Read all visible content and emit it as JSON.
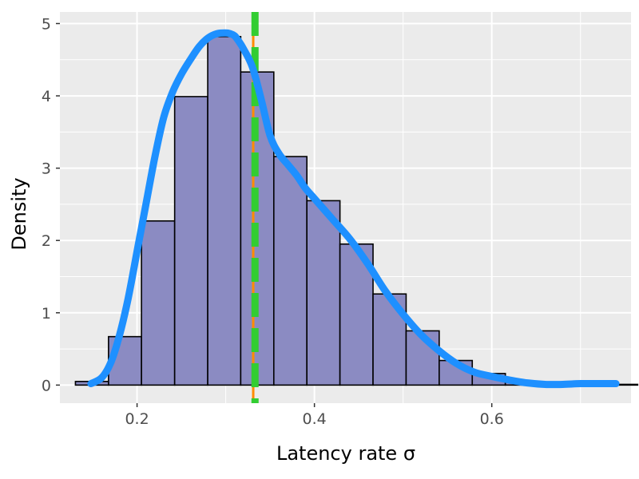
{
  "chart_data": {
    "type": "histogram",
    "xlabel": "Latency rate σ",
    "ylabel": "Density",
    "xlim": [
      0.113,
      0.757
    ],
    "ylim": [
      -0.25,
      5.16
    ],
    "x_ticks": [
      {
        "value": 0.2,
        "label": "0.2"
      },
      {
        "value": 0.4,
        "label": "0.4"
      },
      {
        "value": 0.6,
        "label": "0.6"
      }
    ],
    "y_ticks": [
      {
        "value": 0,
        "label": "0"
      },
      {
        "value": 1,
        "label": "1"
      },
      {
        "value": 2,
        "label": "2"
      },
      {
        "value": 3,
        "label": "3"
      },
      {
        "value": 4,
        "label": "4"
      },
      {
        "value": 5,
        "label": "5"
      }
    ],
    "grid": true,
    "bins": [
      {
        "x0": 0.1305,
        "x1": 0.1678,
        "density": 0.05
      },
      {
        "x0": 0.1678,
        "x1": 0.205,
        "density": 0.67
      },
      {
        "x0": 0.205,
        "x1": 0.2424,
        "density": 2.27
      },
      {
        "x0": 0.2424,
        "x1": 0.2797,
        "density": 3.99
      },
      {
        "x0": 0.2797,
        "x1": 0.3169,
        "density": 4.82
      },
      {
        "x0": 0.3169,
        "x1": 0.3542,
        "density": 4.33
      },
      {
        "x0": 0.3542,
        "x1": 0.3915,
        "density": 3.16
      },
      {
        "x0": 0.3915,
        "x1": 0.4288,
        "density": 2.55
      },
      {
        "x0": 0.4288,
        "x1": 0.4661,
        "density": 1.95
      },
      {
        "x0": 0.4661,
        "x1": 0.5034,
        "density": 1.26
      },
      {
        "x0": 0.5034,
        "x1": 0.5407,
        "density": 0.75
      },
      {
        "x0": 0.5407,
        "x1": 0.578,
        "density": 0.34
      },
      {
        "x0": 0.578,
        "x1": 0.6153,
        "density": 0.16
      },
      {
        "x0": 0.6153,
        "x1": 0.6526,
        "density": 0.04
      },
      {
        "x0": 0.6526,
        "x1": 0.6899,
        "density": 0.02
      },
      {
        "x0": 0.6899,
        "x1": 0.7272,
        "density": 0.01
      },
      {
        "x0": 0.7272,
        "x1": 0.7645,
        "density": 0.01
      }
    ],
    "kde": {
      "x": [
        0.148,
        0.16,
        0.17,
        0.18,
        0.19,
        0.2,
        0.21,
        0.22,
        0.23,
        0.24,
        0.25,
        0.26,
        0.27,
        0.28,
        0.29,
        0.3,
        0.305,
        0.31,
        0.315,
        0.32,
        0.33,
        0.34,
        0.35,
        0.36,
        0.37,
        0.38,
        0.39,
        0.4,
        0.42,
        0.44,
        0.46,
        0.48,
        0.5,
        0.52,
        0.54,
        0.56,
        0.58,
        0.6,
        0.62,
        0.64,
        0.66,
        0.68,
        0.7,
        0.72,
        0.74
      ],
      "y": [
        0.02,
        0.1,
        0.3,
        0.68,
        1.2,
        1.85,
        2.5,
        3.15,
        3.7,
        4.05,
        4.3,
        4.5,
        4.68,
        4.8,
        4.86,
        4.87,
        4.86,
        4.83,
        4.75,
        4.65,
        4.4,
        3.95,
        3.45,
        3.2,
        3.05,
        2.9,
        2.72,
        2.58,
        2.3,
        2.02,
        1.68,
        1.3,
        0.98,
        0.7,
        0.48,
        0.3,
        0.18,
        0.12,
        0.07,
        0.03,
        0.01,
        0.01,
        0.02,
        0.02,
        0.02
      ],
      "color": "#1e90ff"
    },
    "vlines": [
      {
        "x": 0.331,
        "color": "#ff8c00",
        "style": "solid"
      },
      {
        "x": 0.333,
        "color": "#32cd32",
        "style": "dashed"
      }
    ],
    "colors": {
      "panel": "#ebebeb",
      "grid": "#ffffff",
      "bar_fill": "#8b8bc2",
      "bar_stroke": "#000000"
    }
  }
}
